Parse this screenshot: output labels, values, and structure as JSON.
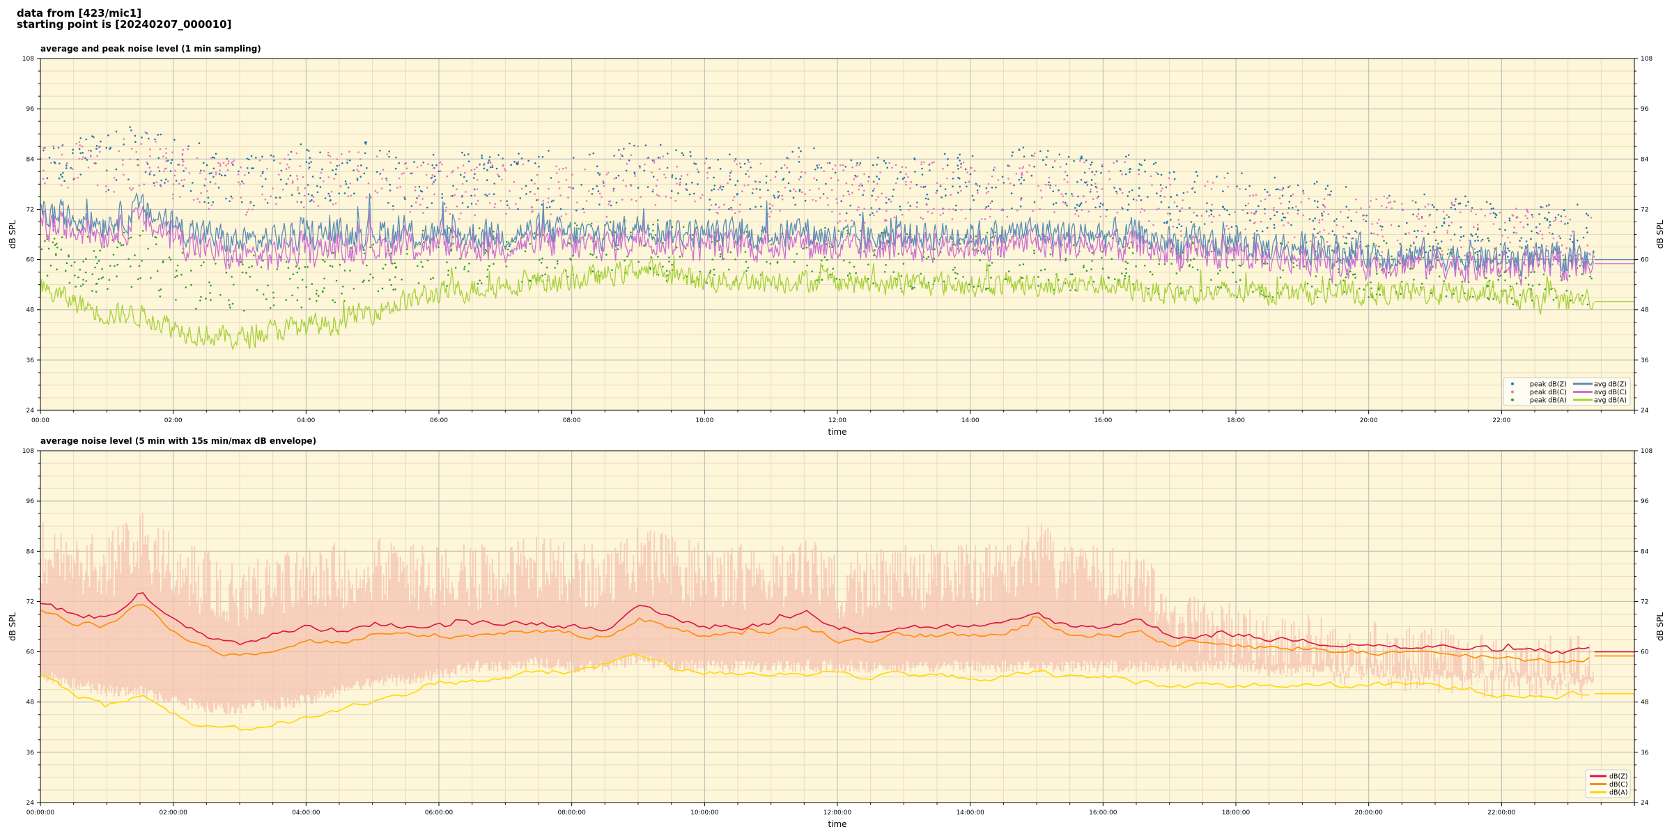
{
  "page": {
    "title_line1": "data from [423/mic1]",
    "title_line2": "starting point is [20240207_000010]"
  },
  "colors": {
    "background": "#fef6d8",
    "grid_major": "#b8b8b8",
    "grid_minor": "#e6dcc0",
    "peak_z": "#1f77b4",
    "peak_c": "#e377c2",
    "peak_a": "#2ca02c",
    "avg_z": "#5b8db8",
    "avg_c": "#cc6fd4",
    "avg_a": "#a6d13a",
    "dbz": "#dc143c",
    "dbc": "#ff8c00",
    "dba": "#ffd700",
    "envelope": "#f4c2b2"
  },
  "chart_data": [
    {
      "type": "line",
      "title": "average and peak noise level (1 min sampling)",
      "xlabel": "time",
      "ylabel": "dB SPL",
      "ylim": [
        24,
        108
      ],
      "xlim_hours": [
        0,
        24
      ],
      "yticks": [
        24,
        36,
        48,
        60,
        72,
        84,
        96,
        108
      ],
      "xtick_labels": [
        "00:00",
        "02:00",
        "04:00",
        "06:00",
        "08:00",
        "10:00",
        "12:00",
        "14:00",
        "16:00",
        "18:00",
        "20:00",
        "22:00"
      ],
      "grid": true,
      "legend_position": "lower-right",
      "legend_entries": [
        "peak dB(Z)",
        "peak dB(C)",
        "peak dB(A)",
        "avg dB(Z)",
        "avg dB(C)",
        "avg dB(A)"
      ],
      "x_hours": [
        0,
        0.5,
        1,
        1.5,
        2,
        2.5,
        3,
        3.5,
        4,
        4.5,
        5,
        5.5,
        6,
        6.5,
        7,
        7.5,
        8,
        8.5,
        9,
        9.5,
        10,
        10.5,
        11,
        11.5,
        12,
        12.5,
        13,
        13.5,
        14,
        14.5,
        15,
        15.5,
        16,
        16.5,
        17,
        17.5,
        18,
        18.5,
        19,
        19.5,
        20,
        20.5,
        21,
        21.5,
        22,
        22.5,
        23,
        23.5
      ],
      "series": [
        {
          "name": "avg dB(Z)",
          "values": [
            71,
            70,
            69,
            72,
            68,
            66,
            64,
            65,
            66,
            66,
            67,
            66,
            66,
            66,
            66,
            67,
            66,
            66,
            68,
            67,
            66,
            66,
            66,
            67,
            65,
            65,
            66,
            66,
            66,
            66,
            67,
            66,
            66,
            66,
            64,
            64,
            64,
            63,
            63,
            62,
            62,
            61,
            61,
            61,
            60,
            60,
            60,
            60
          ]
        },
        {
          "name": "avg dB(C)",
          "values": [
            69,
            68,
            67,
            70,
            66,
            63,
            61,
            62,
            63,
            63,
            64,
            64,
            64,
            64,
            64,
            65,
            64,
            64,
            66,
            65,
            64,
            64,
            64,
            65,
            63,
            63,
            64,
            64,
            64,
            64,
            65,
            64,
            64,
            64,
            62,
            62,
            62,
            61,
            61,
            60,
            60,
            60,
            60,
            59,
            59,
            59,
            59,
            59
          ]
        },
        {
          "name": "avg dB(A)",
          "values": [
            53,
            50,
            47,
            47,
            44,
            42,
            41,
            43,
            44,
            45,
            48,
            50,
            52,
            53,
            54,
            55,
            55,
            56,
            58,
            56,
            55,
            55,
            55,
            55,
            55,
            54,
            54,
            54,
            54,
            54,
            54,
            54,
            54,
            53,
            52,
            52,
            52,
            52,
            52,
            52,
            52,
            52,
            52,
            52,
            51,
            50,
            50,
            50
          ]
        },
        {
          "name": "peak dB(Z)",
          "type": "scatter",
          "values": [
            88,
            86,
            84,
            88,
            84,
            82,
            80,
            82,
            82,
            82,
            83,
            80,
            80,
            80,
            80,
            81,
            80,
            80,
            84,
            82,
            80,
            80,
            80,
            82,
            79,
            79,
            80,
            80,
            80,
            80,
            82,
            80,
            80,
            80,
            76,
            76,
            76,
            74,
            74,
            72,
            72,
            70,
            70,
            70,
            68,
            68,
            68,
            68
          ]
        },
        {
          "name": "peak dB(C)",
          "type": "scatter",
          "values": [
            86,
            84,
            82,
            86,
            82,
            80,
            78,
            80,
            80,
            80,
            81,
            78,
            78,
            78,
            78,
            79,
            78,
            78,
            82,
            80,
            78,
            78,
            78,
            80,
            77,
            77,
            78,
            78,
            78,
            78,
            80,
            78,
            78,
            78,
            74,
            74,
            74,
            72,
            72,
            70,
            70,
            69,
            69,
            68,
            67,
            67,
            67,
            67
          ]
        },
        {
          "name": "peak dB(A)",
          "type": "scatter",
          "values": [
            64,
            62,
            60,
            62,
            58,
            56,
            55,
            56,
            57,
            58,
            60,
            61,
            62,
            62,
            63,
            63,
            63,
            64,
            65,
            63,
            62,
            62,
            62,
            62,
            62,
            61,
            61,
            61,
            61,
            61,
            61,
            61,
            61,
            60,
            59,
            59,
            59,
            59,
            59,
            59,
            59,
            59,
            59,
            59,
            58,
            57,
            57,
            57
          ]
        }
      ]
    },
    {
      "type": "line",
      "title": "average noise level (5 min with 15s min/max dB envelope)",
      "xlabel": "time",
      "ylabel": "dB SPL",
      "ylim": [
        24,
        108
      ],
      "xlim_hours": [
        0,
        24
      ],
      "yticks": [
        24,
        36,
        48,
        60,
        72,
        84,
        96,
        108
      ],
      "xtick_labels": [
        "00:00:00",
        "02:00:00",
        "04:00:00",
        "06:00:00",
        "08:00:00",
        "10:00:00",
        "12:00:00",
        "14:00:00",
        "16:00:00",
        "18:00:00",
        "20:00:00",
        "22:00:00"
      ],
      "grid": true,
      "legend_position": "lower-right",
      "legend_entries": [
        "dB(Z)",
        "dB(C)",
        "dB(A)"
      ],
      "x_hours": [
        0,
        0.5,
        1,
        1.5,
        2,
        2.5,
        3,
        3.5,
        4,
        4.5,
        5,
        5.5,
        6,
        6.5,
        7,
        7.5,
        8,
        8.5,
        9,
        9.5,
        10,
        10.5,
        11,
        11.5,
        12,
        12.5,
        13,
        13.5,
        14,
        14.5,
        15,
        15.5,
        16,
        16.5,
        17,
        17.5,
        18,
        18.5,
        19,
        19.5,
        20,
        20.5,
        21,
        21.5,
        22,
        22.5,
        23,
        23.5
      ],
      "series": [
        {
          "name": "dB(Z)",
          "values": [
            72,
            69,
            68,
            74,
            67,
            64,
            62,
            64,
            66,
            65,
            67,
            66,
            66,
            66,
            67,
            67,
            66,
            66,
            70,
            68,
            66,
            66,
            67,
            69,
            65,
            65,
            66,
            66,
            66,
            66,
            69,
            66,
            66,
            68,
            64,
            64,
            64,
            63,
            63,
            62,
            62,
            61,
            61,
            61,
            60,
            60,
            60,
            60
          ]
        },
        {
          "name": "dB(C)",
          "values": [
            70,
            67,
            66,
            72,
            65,
            61,
            59,
            61,
            63,
            62,
            64,
            64,
            64,
            64,
            65,
            65,
            64,
            64,
            68,
            66,
            64,
            64,
            65,
            66,
            63,
            63,
            64,
            64,
            64,
            64,
            67,
            64,
            64,
            65,
            62,
            62,
            62,
            61,
            61,
            60,
            60,
            60,
            59,
            59,
            59,
            58,
            58,
            59
          ]
        },
        {
          "name": "dB(A)",
          "values": [
            55,
            50,
            47,
            50,
            45,
            42,
            41,
            43,
            44,
            46,
            48,
            50,
            53,
            53,
            54,
            55,
            55,
            57,
            60,
            56,
            55,
            55,
            55,
            55,
            55,
            54,
            54,
            54,
            54,
            54,
            55,
            54,
            54,
            53,
            52,
            52,
            52,
            52,
            52,
            52,
            52,
            52,
            52,
            51,
            50,
            50,
            50,
            50
          ]
        },
        {
          "name": "envelope max",
          "type": "area",
          "values": [
            92,
            90,
            88,
            94,
            88,
            84,
            82,
            84,
            86,
            86,
            88,
            86,
            86,
            86,
            86,
            88,
            86,
            86,
            90,
            88,
            86,
            86,
            86,
            88,
            84,
            84,
            86,
            86,
            86,
            86,
            92,
            86,
            86,
            86,
            76,
            74,
            72,
            70,
            70,
            68,
            68,
            66,
            66,
            66,
            64,
            64,
            64,
            64
          ]
        },
        {
          "name": "envelope min",
          "type": "area",
          "values": [
            56,
            54,
            52,
            52,
            50,
            48,
            48,
            49,
            50,
            52,
            54,
            55,
            56,
            58,
            58,
            59,
            58,
            58,
            60,
            58,
            58,
            58,
            58,
            58,
            58,
            58,
            58,
            58,
            58,
            58,
            58,
            58,
            58,
            58,
            58,
            58,
            58,
            57,
            57,
            57,
            57,
            56,
            56,
            56,
            56,
            55,
            55,
            55
          ]
        }
      ]
    }
  ]
}
